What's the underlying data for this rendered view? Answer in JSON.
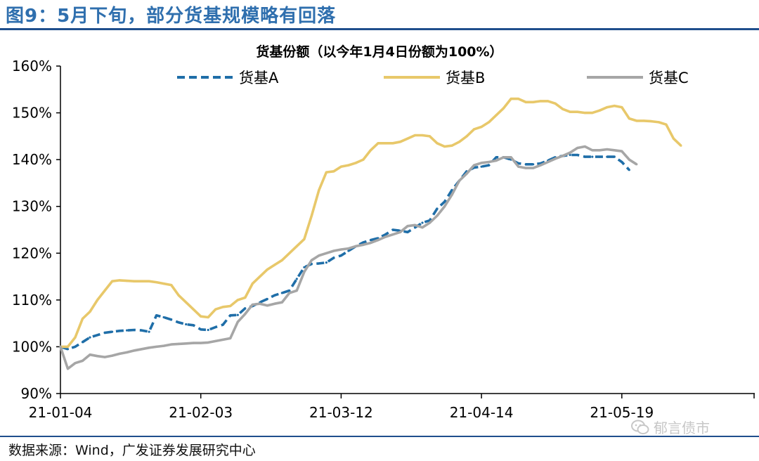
{
  "figure_title": "图9：5月下旬，部分货基规模略有回落",
  "source_note": "数据来源：Wind，广发证券发展研究中心",
  "watermark": "郁言债市",
  "colors": {
    "series_a": "#1f6ea8",
    "series_b": "#e8c86a",
    "series_c": "#a6a6a6",
    "title": "#2f6fae",
    "rule": "#1f4e8c"
  },
  "chart_data": {
    "type": "line",
    "title": "货基份额（以今年1月4日份额为100%）",
    "xlabel": "",
    "ylabel": "",
    "ylim": [
      90,
      160
    ],
    "yticks": [
      90,
      100,
      110,
      120,
      130,
      140,
      150,
      160
    ],
    "ytick_labels": [
      "90%",
      "100%",
      "110%",
      "120%",
      "130%",
      "140%",
      "150%",
      "160%"
    ],
    "x_index_range": [
      0,
      94
    ],
    "xticks": [
      0,
      19,
      38,
      57,
      76,
      95
    ],
    "xtick_labels": [
      "21-01-04",
      "21-02-03",
      "21-03-12",
      "21-04-14",
      "21-05-19"
    ],
    "xtick_label_index": [
      0,
      19,
      38,
      57,
      76
    ],
    "legend_position": "top",
    "grid": false,
    "series": [
      {
        "name": "货基A",
        "style": "dashed",
        "color": "#1f6ea8",
        "points": [
          [
            0,
            100
          ],
          [
            1,
            99.5
          ],
          [
            2,
            100
          ],
          [
            3,
            101
          ],
          [
            4,
            102
          ],
          [
            5,
            102.5
          ],
          [
            6,
            103
          ],
          [
            7,
            103.2
          ],
          [
            8,
            103.4
          ],
          [
            9,
            103.5
          ],
          [
            10,
            103.6
          ],
          [
            11,
            103.5
          ],
          [
            12,
            103.2
          ],
          [
            13,
            106.7
          ],
          [
            14,
            106.3
          ],
          [
            15,
            105.8
          ],
          [
            16,
            105.2
          ],
          [
            17,
            104.8
          ],
          [
            18,
            104.6
          ],
          [
            19,
            103.7
          ],
          [
            20,
            103.6
          ],
          [
            21,
            104.2
          ],
          [
            22,
            104.7
          ],
          [
            23,
            106.7
          ],
          [
            24,
            106.8
          ],
          [
            25,
            108.2
          ],
          [
            26,
            108.7
          ],
          [
            27,
            109.5
          ],
          [
            28,
            110.2
          ],
          [
            29,
            111
          ],
          [
            30,
            111.5
          ],
          [
            31,
            112
          ],
          [
            32,
            114.5
          ],
          [
            33,
            117
          ],
          [
            34,
            117.7
          ],
          [
            35,
            117.8
          ],
          [
            36,
            118
          ],
          [
            37,
            119
          ],
          [
            38,
            119.5
          ],
          [
            39,
            120.5
          ],
          [
            40,
            121.5
          ],
          [
            41,
            122.3
          ],
          [
            42,
            122.8
          ],
          [
            43,
            123.2
          ],
          [
            44,
            124
          ],
          [
            45,
            125
          ],
          [
            46,
            124.8
          ],
          [
            47,
            124.5
          ],
          [
            48,
            125.5
          ],
          [
            49,
            126.5
          ],
          [
            50,
            127
          ],
          [
            51,
            129.5
          ],
          [
            52,
            131
          ],
          [
            53,
            133.5
          ],
          [
            54,
            135.5
          ],
          [
            55,
            137.5
          ],
          [
            56,
            138.3
          ],
          [
            57,
            138.5
          ],
          [
            58,
            138.8
          ],
          [
            59,
            140.5
          ],
          [
            60,
            140.5
          ],
          [
            61,
            140
          ],
          [
            62,
            139.2
          ],
          [
            63,
            139
          ],
          [
            64,
            139
          ],
          [
            65,
            139.2
          ],
          [
            66,
            139.8
          ],
          [
            67,
            140.5
          ],
          [
            68,
            140.8
          ],
          [
            69,
            141
          ],
          [
            70,
            141
          ],
          [
            71,
            140.6
          ],
          [
            72,
            140.6
          ],
          [
            73,
            140.6
          ],
          [
            74,
            140.6
          ],
          [
            75,
            140.6
          ],
          [
            76,
            139.5
          ],
          [
            77,
            137.8
          ]
        ]
      },
      {
        "name": "货基B",
        "style": "solid",
        "color": "#e8c86a",
        "points": [
          [
            0,
            100
          ],
          [
            1,
            100
          ],
          [
            2,
            102
          ],
          [
            3,
            106
          ],
          [
            4,
            107.5
          ],
          [
            5,
            110
          ],
          [
            6,
            112
          ],
          [
            7,
            114
          ],
          [
            8,
            114.2
          ],
          [
            9,
            114.1
          ],
          [
            10,
            114
          ],
          [
            11,
            114
          ],
          [
            12,
            114
          ],
          [
            13,
            113.8
          ],
          [
            14,
            113.5
          ],
          [
            15,
            113.2
          ],
          [
            16,
            111
          ],
          [
            17,
            109.5
          ],
          [
            18,
            108
          ],
          [
            19,
            106.5
          ],
          [
            20,
            106.3
          ],
          [
            21,
            108
          ],
          [
            22,
            108.5
          ],
          [
            23,
            108.7
          ],
          [
            24,
            110
          ],
          [
            25,
            110.5
          ],
          [
            26,
            113.5
          ],
          [
            27,
            115
          ],
          [
            28,
            116.5
          ],
          [
            29,
            117.5
          ],
          [
            30,
            118.5
          ],
          [
            31,
            120
          ],
          [
            32,
            121.5
          ],
          [
            33,
            123
          ],
          [
            34,
            128
          ],
          [
            35,
            133.5
          ],
          [
            36,
            137.3
          ],
          [
            37,
            137.5
          ],
          [
            38,
            138.5
          ],
          [
            39,
            138.8
          ],
          [
            40,
            139.3
          ],
          [
            41,
            140
          ],
          [
            42,
            142
          ],
          [
            43,
            143.5
          ],
          [
            44,
            143.5
          ],
          [
            45,
            143.5
          ],
          [
            46,
            143.8
          ],
          [
            47,
            144.5
          ],
          [
            48,
            145.2
          ],
          [
            49,
            145.2
          ],
          [
            50,
            145
          ],
          [
            51,
            143.5
          ],
          [
            52,
            142.8
          ],
          [
            53,
            143
          ],
          [
            54,
            143.8
          ],
          [
            55,
            145
          ],
          [
            56,
            146.5
          ],
          [
            57,
            147
          ],
          [
            58,
            148
          ],
          [
            59,
            149.5
          ],
          [
            60,
            151
          ],
          [
            61,
            153
          ],
          [
            62,
            153
          ],
          [
            63,
            152.3
          ],
          [
            64,
            152.3
          ],
          [
            65,
            152.5
          ],
          [
            66,
            152.5
          ],
          [
            67,
            152
          ],
          [
            68,
            150.8
          ],
          [
            69,
            150.2
          ],
          [
            70,
            150.2
          ],
          [
            71,
            150
          ],
          [
            72,
            150
          ],
          [
            73,
            150.5
          ],
          [
            74,
            151.2
          ],
          [
            75,
            151.5
          ],
          [
            76,
            151.2
          ],
          [
            77,
            148.8
          ],
          [
            78,
            148.3
          ],
          [
            79,
            148.3
          ],
          [
            80,
            148.2
          ],
          [
            81,
            148
          ],
          [
            82,
            147.5
          ],
          [
            83,
            144.5
          ],
          [
            84,
            143
          ]
        ]
      },
      {
        "name": "货基C",
        "style": "solid",
        "color": "#a6a6a6",
        "points": [
          [
            0,
            100
          ],
          [
            1,
            95.3
          ],
          [
            2,
            96.5
          ],
          [
            3,
            97
          ],
          [
            4,
            98.3
          ],
          [
            5,
            98
          ],
          [
            6,
            97.8
          ],
          [
            7,
            98.1
          ],
          [
            8,
            98.5
          ],
          [
            9,
            98.8
          ],
          [
            10,
            99.2
          ],
          [
            11,
            99.5
          ],
          [
            12,
            99.8
          ],
          [
            13,
            100
          ],
          [
            14,
            100.2
          ],
          [
            15,
            100.5
          ],
          [
            16,
            100.6
          ],
          [
            17,
            100.7
          ],
          [
            18,
            100.8
          ],
          [
            19,
            100.8
          ],
          [
            20,
            100.9
          ],
          [
            21,
            101.2
          ],
          [
            22,
            101.5
          ],
          [
            23,
            101.8
          ],
          [
            24,
            105.3
          ],
          [
            25,
            107
          ],
          [
            26,
            109
          ],
          [
            27,
            109.2
          ],
          [
            28,
            108.8
          ],
          [
            29,
            109.2
          ],
          [
            30,
            109.5
          ],
          [
            31,
            111.5
          ],
          [
            32,
            112
          ],
          [
            33,
            116
          ],
          [
            34,
            118.5
          ],
          [
            35,
            119.5
          ],
          [
            36,
            120
          ],
          [
            37,
            120.5
          ],
          [
            38,
            120.8
          ],
          [
            39,
            121
          ],
          [
            40,
            121.5
          ],
          [
            41,
            121.8
          ],
          [
            42,
            122.2
          ],
          [
            43,
            122.8
          ],
          [
            44,
            123.5
          ],
          [
            45,
            124
          ],
          [
            46,
            124.5
          ],
          [
            47,
            125.8
          ],
          [
            48,
            126
          ],
          [
            49,
            125.5
          ],
          [
            50,
            126.5
          ],
          [
            51,
            128
          ],
          [
            52,
            130
          ],
          [
            53,
            132.5
          ],
          [
            54,
            135.5
          ],
          [
            55,
            137
          ],
          [
            56,
            138.8
          ],
          [
            57,
            139.3
          ],
          [
            58,
            139.5
          ],
          [
            59,
            139.8
          ],
          [
            60,
            140.5
          ],
          [
            61,
            140.5
          ],
          [
            62,
            138.5
          ],
          [
            63,
            138.2
          ],
          [
            64,
            138.2
          ],
          [
            65,
            138.8
          ],
          [
            66,
            139.5
          ],
          [
            67,
            140.2
          ],
          [
            68,
            140.8
          ],
          [
            69,
            141.5
          ],
          [
            70,
            142.5
          ],
          [
            71,
            142.8
          ],
          [
            72,
            142
          ],
          [
            73,
            142
          ],
          [
            74,
            142.2
          ],
          [
            75,
            142
          ],
          [
            76,
            141.8
          ],
          [
            77,
            140
          ],
          [
            78,
            139
          ]
        ]
      }
    ]
  }
}
